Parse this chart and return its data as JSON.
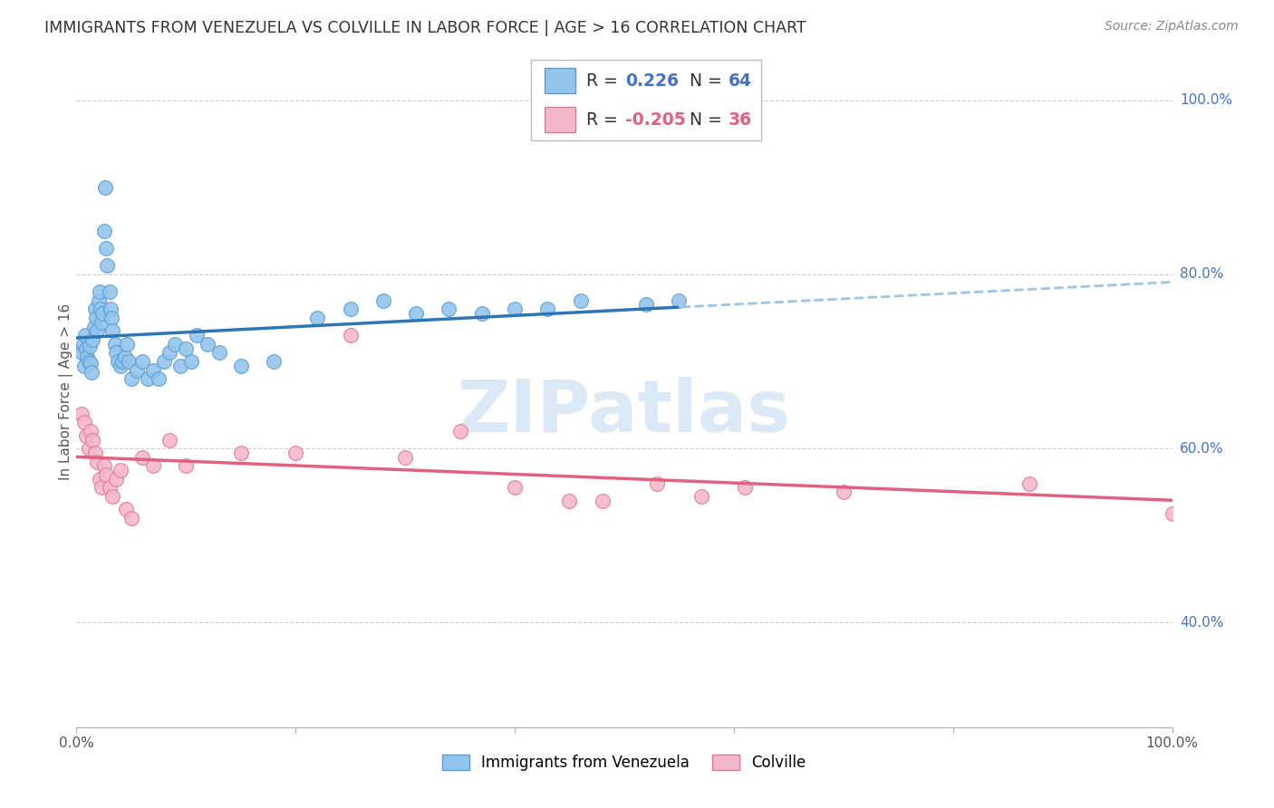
{
  "title": "IMMIGRANTS FROM VENEZUELA VS COLVILLE IN LABOR FORCE | AGE > 16 CORRELATION CHART",
  "source_text": "Source: ZipAtlas.com",
  "ylabel": "In Labor Force | Age > 16",
  "xlim": [
    0.0,
    1.0
  ],
  "ylim": [
    0.28,
    1.05
  ],
  "ytick_vals": [
    0.4,
    0.6,
    0.8,
    1.0
  ],
  "ytick_labels": [
    "40.0%",
    "60.0%",
    "80.0%",
    "100.0%"
  ],
  "xtick_vals": [
    0.0,
    0.2,
    0.4,
    0.6,
    0.8,
    1.0
  ],
  "xtick_labels": [
    "0.0%",
    "",
    "",
    "",
    "",
    "100.0%"
  ],
  "blue_color": "#92C5EC",
  "blue_edge": "#5B9BD5",
  "pink_color": "#F4B8C8",
  "pink_edge": "#E07898",
  "blue_line_color": "#2E75B6",
  "pink_line_color": "#E06080",
  "blue_dashed_color": "#9DC3E6",
  "R_blue": 0.226,
  "N_blue": 64,
  "R_pink": -0.205,
  "N_pink": 36,
  "watermark": "ZIPatlas",
  "legend_labels": [
    "Immigrants from Venezuela",
    "Colville"
  ],
  "blue_x": [
    0.005,
    0.006,
    0.007,
    0.008,
    0.009,
    0.01,
    0.011,
    0.012,
    0.013,
    0.014,
    0.015,
    0.016,
    0.017,
    0.018,
    0.019,
    0.02,
    0.021,
    0.022,
    0.023,
    0.024,
    0.025,
    0.026,
    0.027,
    0.028,
    0.03,
    0.031,
    0.032,
    0.033,
    0.035,
    0.036,
    0.038,
    0.04,
    0.042,
    0.044,
    0.046,
    0.048,
    0.05,
    0.055,
    0.06,
    0.065,
    0.07,
    0.075,
    0.08,
    0.085,
    0.09,
    0.095,
    0.1,
    0.105,
    0.11,
    0.12,
    0.13,
    0.15,
    0.18,
    0.22,
    0.25,
    0.28,
    0.31,
    0.34,
    0.37,
    0.4,
    0.43,
    0.46,
    0.52,
    0.55
  ],
  "blue_y": [
    0.71,
    0.72,
    0.695,
    0.73,
    0.715,
    0.705,
    0.7,
    0.718,
    0.698,
    0.688,
    0.725,
    0.74,
    0.76,
    0.75,
    0.735,
    0.77,
    0.78,
    0.76,
    0.745,
    0.755,
    0.85,
    0.9,
    0.83,
    0.81,
    0.78,
    0.76,
    0.75,
    0.735,
    0.72,
    0.71,
    0.7,
    0.695,
    0.7,
    0.705,
    0.72,
    0.7,
    0.68,
    0.69,
    0.7,
    0.68,
    0.69,
    0.68,
    0.7,
    0.71,
    0.72,
    0.695,
    0.715,
    0.7,
    0.73,
    0.72,
    0.71,
    0.695,
    0.7,
    0.75,
    0.76,
    0.77,
    0.755,
    0.76,
    0.755,
    0.76,
    0.76,
    0.77,
    0.765,
    0.77
  ],
  "pink_x": [
    0.005,
    0.007,
    0.009,
    0.011,
    0.013,
    0.015,
    0.017,
    0.019,
    0.021,
    0.023,
    0.025,
    0.027,
    0.03,
    0.033,
    0.036,
    0.04,
    0.045,
    0.05,
    0.06,
    0.07,
    0.085,
    0.1,
    0.15,
    0.2,
    0.25,
    0.3,
    0.35,
    0.4,
    0.45,
    0.48,
    0.53,
    0.57,
    0.61,
    0.7,
    0.87,
    1.0
  ],
  "pink_y": [
    0.64,
    0.63,
    0.615,
    0.6,
    0.62,
    0.61,
    0.595,
    0.585,
    0.565,
    0.555,
    0.58,
    0.57,
    0.555,
    0.545,
    0.565,
    0.575,
    0.53,
    0.52,
    0.59,
    0.58,
    0.61,
    0.58,
    0.595,
    0.595,
    0.73,
    0.59,
    0.62,
    0.555,
    0.54,
    0.54,
    0.56,
    0.545,
    0.555,
    0.55,
    0.56,
    0.525
  ]
}
